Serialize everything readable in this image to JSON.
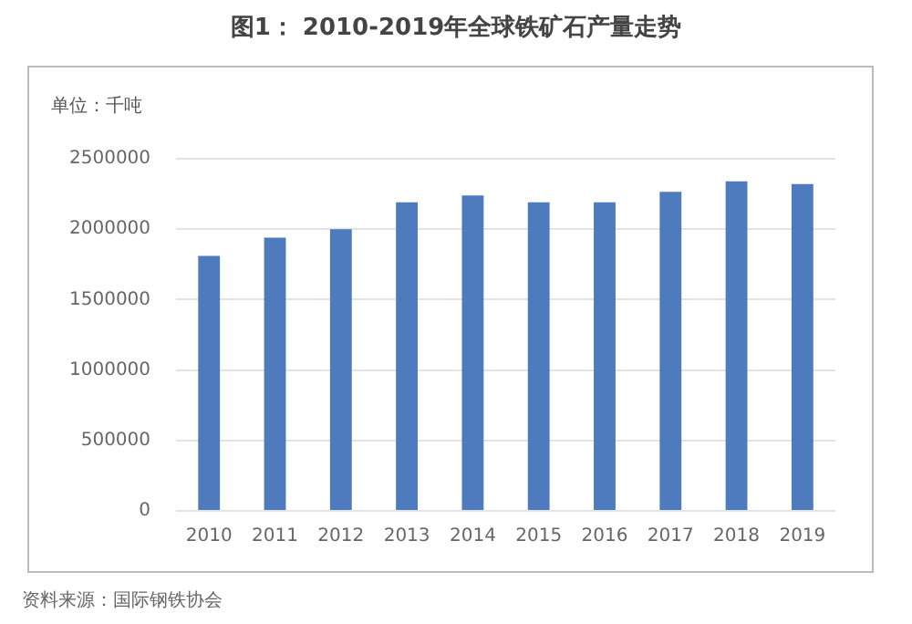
{
  "chart_data": {
    "type": "bar",
    "title": "图1： 2010-2019年全球铁矿石产量走势",
    "ylabel": "单位：千吨",
    "categories": [
      "2010",
      "2011",
      "2012",
      "2013",
      "2014",
      "2015",
      "2016",
      "2017",
      "2018",
      "2019"
    ],
    "values": [
      1810000,
      1940000,
      2000000,
      2190000,
      2240000,
      2190000,
      2190000,
      2265000,
      2340000,
      2320000
    ],
    "color": "#4e7bbd",
    "ylim": [
      0,
      2500000
    ],
    "yticks": [
      0,
      500000,
      1000000,
      1500000,
      2000000,
      2500000
    ],
    "grid": "y",
    "annotations": [
      "资料来源：国际钢铁协会"
    ]
  }
}
